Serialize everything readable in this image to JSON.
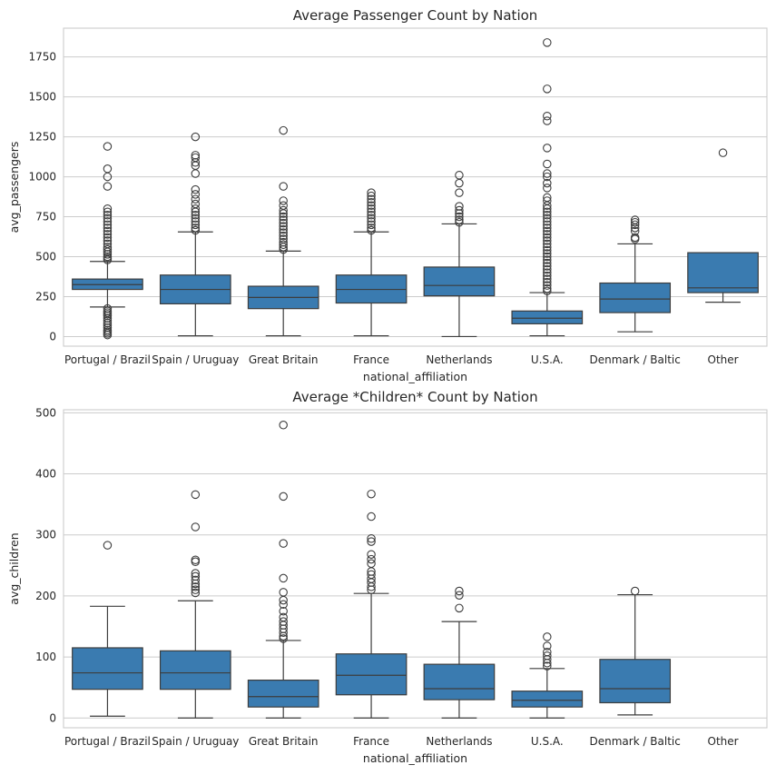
{
  "chart_data": [
    {
      "type": "box",
      "title": "Average Passenger Count by Nation",
      "xlabel": "national_affiliation",
      "ylabel": "avg_passengers",
      "ylim": [
        -60,
        1930
      ],
      "yticks": [
        0,
        250,
        500,
        750,
        1000,
        1250,
        1500,
        1750
      ],
      "grid": true,
      "color": "#3a7bb0",
      "categories": [
        "Portugal / Brazil",
        "Spain / Uruguay",
        "Great Britain",
        "France",
        "Netherlands",
        "U.S.A.",
        "Denmark / Baltic",
        "Other"
      ],
      "boxes": [
        {
          "whisker_low": 185,
          "q1": 295,
          "median": 325,
          "q3": 360,
          "whisker_high": 470,
          "fliers": [
            1190,
            1050,
            1000,
            940,
            800,
            780,
            760,
            740,
            720,
            700,
            680,
            660,
            640,
            620,
            600,
            580,
            560,
            545,
            530,
            515,
            500,
            490,
            480,
            175,
            160,
            150,
            140,
            130,
            115,
            100,
            85,
            70,
            55,
            40,
            30,
            20,
            10
          ]
        },
        {
          "whisker_low": 5,
          "q1": 205,
          "median": 295,
          "q3": 385,
          "whisker_high": 655,
          "fliers": [
            1250,
            1135,
            1120,
            1090,
            1070,
            1020,
            920,
            890,
            860,
            830,
            800,
            780,
            760,
            740,
            720,
            700,
            680,
            665
          ]
        },
        {
          "whisker_low": 5,
          "q1": 175,
          "median": 245,
          "q3": 315,
          "whisker_high": 535,
          "fliers": [
            1290,
            940,
            850,
            820,
            790,
            770,
            750,
            730,
            710,
            690,
            670,
            650,
            630,
            610,
            590,
            575,
            560,
            545
          ]
        },
        {
          "whisker_low": 5,
          "q1": 210,
          "median": 295,
          "q3": 385,
          "whisker_high": 655,
          "fliers": [
            900,
            880,
            860,
            840,
            820,
            800,
            780,
            760,
            740,
            720,
            700,
            680,
            665
          ]
        },
        {
          "whisker_low": 0,
          "q1": 255,
          "median": 320,
          "q3": 435,
          "whisker_high": 705,
          "fliers": [
            1010,
            960,
            900,
            815,
            790,
            770,
            750,
            730,
            715
          ]
        },
        {
          "whisker_low": 5,
          "q1": 80,
          "median": 115,
          "q3": 160,
          "whisker_high": 275,
          "fliers": [
            1840,
            1550,
            1380,
            1350,
            1180,
            1080,
            1020,
            1000,
            960,
            930,
            870,
            850,
            820,
            800,
            780,
            760,
            740,
            720,
            700,
            680,
            660,
            640,
            620,
            600,
            580,
            560,
            540,
            520,
            500,
            480,
            460,
            440,
            420,
            400,
            380,
            360,
            340,
            320,
            300,
            285
          ]
        },
        {
          "whisker_low": 30,
          "q1": 150,
          "median": 235,
          "q3": 335,
          "whisker_high": 580,
          "fliers": [
            730,
            715,
            700,
            680,
            660,
            620,
            610
          ]
        },
        {
          "whisker_low": 215,
          "q1": 275,
          "median": 305,
          "q3": 525,
          "whisker_high": 525,
          "fliers": [
            1150
          ]
        }
      ]
    },
    {
      "type": "box",
      "title": "Average *Children* Count by Nation",
      "xlabel": "national_affiliation",
      "ylabel": "avg_children",
      "ylim": [
        -16,
        505
      ],
      "yticks": [
        0,
        100,
        200,
        300,
        400,
        500
      ],
      "grid": true,
      "color": "#3a7bb0",
      "categories": [
        "Portugal / Brazil",
        "Spain / Uruguay",
        "Great Britain",
        "France",
        "Netherlands",
        "U.S.A.",
        "Denmark / Baltic",
        "Other"
      ],
      "boxes": [
        {
          "whisker_low": 3,
          "q1": 47,
          "median": 74,
          "q3": 115,
          "whisker_high": 183,
          "fliers": [
            283
          ]
        },
        {
          "whisker_low": 0,
          "q1": 47,
          "median": 74,
          "q3": 110,
          "whisker_high": 192,
          "fliers": [
            366,
            313,
            259,
            256,
            237,
            232,
            226,
            220,
            215,
            210,
            205
          ]
        },
        {
          "whisker_low": 0,
          "q1": 18,
          "median": 35,
          "q3": 62,
          "whisker_high": 127,
          "fliers": [
            480,
            363,
            286,
            229,
            206,
            193,
            186,
            175,
            165,
            158,
            152,
            146,
            140,
            134,
            130
          ]
        },
        {
          "whisker_low": 0,
          "q1": 38,
          "median": 70,
          "q3": 105,
          "whisker_high": 204,
          "fliers": [
            367,
            330,
            294,
            289,
            268,
            260,
            253,
            240,
            235,
            228,
            222,
            215,
            210
          ]
        },
        {
          "whisker_low": 0,
          "q1": 30,
          "median": 48,
          "q3": 88,
          "whisker_high": 158,
          "fliers": [
            208,
            201,
            180
          ]
        },
        {
          "whisker_low": 0,
          "q1": 18,
          "median": 29,
          "q3": 44,
          "whisker_high": 81,
          "fliers": [
            133,
            118,
            108,
            102,
            96,
            90,
            85
          ]
        },
        {
          "whisker_low": 5,
          "q1": 25,
          "median": 48,
          "q3": 96,
          "whisker_high": 202,
          "fliers": [
            208
          ]
        },
        null
      ]
    }
  ]
}
